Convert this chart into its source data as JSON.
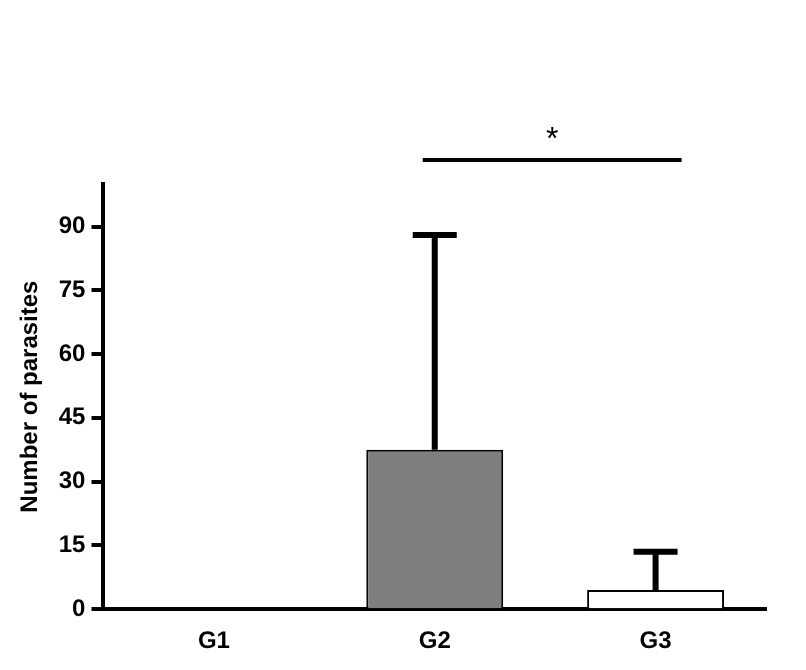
{
  "chart_data": {
    "type": "bar",
    "ylabel": "Number of parasites",
    "categories": [
      "G1",
      "G2",
      "G3"
    ],
    "values": [
      0,
      37.5,
      4.5
    ],
    "colors": [
      "#7f7f7f",
      "#7f7f7f",
      "#ffffff"
    ],
    "errors": [
      null,
      [
        37.5,
        88
      ],
      [
        4.5,
        13.5
      ]
    ],
    "ylim": [
      0,
      100
    ],
    "yticks": [
      0,
      15,
      30,
      45,
      60,
      75,
      90
    ],
    "annotations": [
      "*"
    ],
    "grid": false,
    "legend": false
  }
}
